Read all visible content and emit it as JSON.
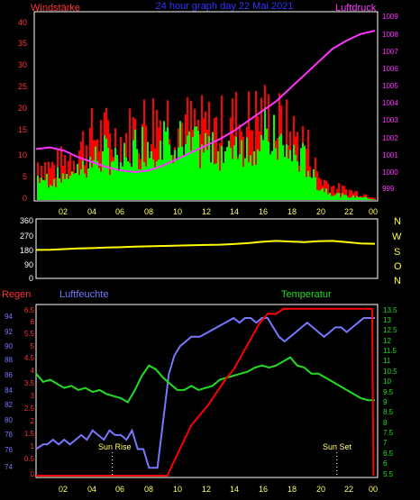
{
  "chart_data": [
    {
      "type": "bar",
      "title": "24 hour graph day 22 Mai 2021",
      "left_label": "Windstärke",
      "right_label": "Luftdruck",
      "x_ticks": [
        "02",
        "04",
        "06",
        "08",
        "10",
        "12",
        "14",
        "16",
        "18",
        "20",
        "22",
        "00"
      ],
      "y_left_ticks": [
        "40",
        "35",
        "30",
        "25",
        "20",
        "15",
        "10",
        "5",
        "0"
      ],
      "y_right_ticks": [
        "1009",
        "1008",
        "1007",
        "1006",
        "1005",
        "1004",
        "1003",
        "1002",
        "1001",
        "1000",
        "999"
      ],
      "ylim_left": [
        0,
        42.5
      ],
      "ylim_right": [
        998,
        1009.4
      ],
      "gust_color": "#ff0000",
      "wind_color": "#00ff00",
      "pressure_color": "#ff33ff",
      "wind_envelope": {
        "x": [
          0,
          1,
          2,
          3,
          4,
          5,
          6,
          7,
          8,
          9,
          10,
          11,
          12,
          13,
          14,
          15,
          16,
          17,
          18,
          19,
          20,
          21,
          22,
          23,
          24
        ],
        "gust": [
          12,
          10,
          12,
          16,
          20,
          20,
          18,
          22,
          24,
          26,
          24,
          22,
          22,
          22,
          24,
          24,
          26,
          24,
          20,
          18,
          7,
          4,
          3,
          2,
          1
        ],
        "wind": [
          7,
          6,
          8,
          10,
          12,
          14,
          12,
          16,
          18,
          20,
          18,
          16,
          16,
          16,
          18,
          18,
          20,
          18,
          14,
          12,
          4,
          2,
          1,
          1,
          0
        ]
      },
      "pressure": {
        "x": [
          0,
          1,
          2,
          3,
          4,
          5,
          6,
          7,
          8,
          9,
          10,
          11,
          12,
          13,
          14,
          15,
          16,
          17,
          18,
          19,
          20,
          21,
          22,
          23,
          24
        ],
        "y": [
          1001.1,
          1001.2,
          1001.0,
          1000.6,
          1000.3,
          1000.0,
          999.8,
          999.7,
          999.8,
          1000.1,
          1000.5,
          1000.9,
          1001.3,
          1001.7,
          1002.2,
          1002.8,
          1003.4,
          1004.0,
          1004.8,
          1005.6,
          1006.4,
          1007.2,
          1007.7,
          1008.1,
          1008.3
        ]
      }
    },
    {
      "type": "line",
      "y_ticks": [
        "360",
        "270",
        "180",
        "90",
        "0"
      ],
      "ylim": [
        0,
        360
      ],
      "compass": [
        "N",
        "W",
        "S",
        "O",
        "N"
      ],
      "color": "#ffff00",
      "x_ticks": [
        "02",
        "04",
        "06",
        "08",
        "10",
        "12",
        "14",
        "16",
        "18",
        "20",
        "22",
        "00"
      ],
      "x": [
        0,
        1,
        2,
        3,
        4,
        5,
        6,
        7,
        8,
        9,
        10,
        11,
        12,
        13,
        14,
        15,
        16,
        17,
        18,
        19,
        20,
        21,
        22,
        23,
        24
      ],
      "y": [
        175,
        176,
        180,
        184,
        186,
        190,
        192,
        196,
        198,
        200,
        202,
        204,
        206,
        208,
        212,
        218,
        226,
        232,
        228,
        224,
        230,
        232,
        224,
        216,
        214
      ]
    },
    {
      "type": "line",
      "labels": {
        "regen": "Regen",
        "luftfeuchte": "Luftfeuchte",
        "temperatur": "Temperatur"
      },
      "y_rain_ticks": [
        "6.5",
        "6",
        "5.5",
        "5",
        "4.5",
        "4",
        "3.5",
        "3",
        "2.5",
        "2",
        "1.5",
        "1",
        "0.5",
        "0"
      ],
      "ylim_rain": [
        0,
        6.7
      ],
      "y_hum_ticks": [
        "94",
        "92",
        "90",
        "88",
        "86",
        "84",
        "82",
        "80",
        "78",
        "76",
        "74"
      ],
      "ylim_hum": [
        73.2,
        94.9
      ],
      "y_temp_ticks": [
        "13.5",
        "13",
        "12.5",
        "12",
        "11.5",
        "11",
        "10.5",
        "10",
        "9.5",
        "9",
        "8.5",
        "8",
        "7.5",
        "7",
        "6.5",
        "6",
        "5.5"
      ],
      "ylim_temp": [
        5.4,
        13.7
      ],
      "x_ticks": [
        "02",
        "04",
        "06",
        "08",
        "10",
        "12",
        "14",
        "16",
        "18",
        "20",
        "22",
        "00"
      ],
      "sun_rise_label": "Sun Rise",
      "sun_set_label": "Sun Set",
      "sun_rise_x": 5.4,
      "sun_set_x": 21.3,
      "rain_color": "#ff0000",
      "hum_color": "#7777ff",
      "temp_color": "#22dd22",
      "rain": {
        "x": [
          0,
          9.3,
          9.8,
          10.4,
          11.0,
          11.6,
          12.2,
          12.8,
          13.4,
          14.0,
          14.6,
          15.2,
          15.8,
          16.4,
          17.0,
          17.5,
          18.2,
          23.8,
          23.9
        ],
        "y": [
          0,
          0,
          0.6,
          1.3,
          2.0,
          2.4,
          2.8,
          3.3,
          3.8,
          4.2,
          4.8,
          5.4,
          6.0,
          6.4,
          6.4,
          6.6,
          6.6,
          6.6,
          0
        ]
      },
      "humidity": {
        "x": [
          0,
          0.5,
          0.8,
          1.2,
          1.6,
          2.0,
          2.4,
          2.8,
          3.2,
          3.6,
          4.0,
          4.4,
          4.8,
          5.2,
          5.6,
          6.0,
          6.4,
          6.8,
          7.2,
          7.6,
          8.0,
          8.6,
          9.0,
          9.4,
          9.8,
          10.2,
          10.6,
          11.0,
          11.6,
          12.2,
          12.8,
          13.4,
          14.0,
          14.4,
          14.8,
          15.2,
          15.6,
          16.0,
          16.4,
          16.8,
          17.2,
          17.6,
          18.0,
          18.4,
          18.8,
          19.2,
          19.6,
          20.0,
          20.4,
          20.8,
          21.2,
          21.6,
          22.0,
          22.4,
          22.8,
          23.2,
          23.6,
          24
        ],
        "y": [
          76.6,
          77.2,
          77.2,
          77.8,
          77.2,
          77.8,
          77.2,
          77.8,
          78.4,
          77.8,
          79.0,
          78.4,
          77.8,
          79.0,
          78.4,
          78.4,
          77.8,
          79.0,
          76.6,
          76.6,
          74.2,
          74.2,
          80.2,
          86.2,
          88.6,
          89.8,
          90.4,
          91.0,
          91.0,
          91.6,
          92.2,
          92.8,
          93.4,
          92.8,
          93.4,
          93.4,
          92.8,
          93.4,
          93.4,
          92.2,
          91.0,
          90.4,
          91.0,
          91.6,
          92.2,
          92.8,
          92.2,
          91.6,
          91.0,
          91.6,
          92.2,
          92.2,
          91.6,
          92.2,
          92.8,
          93.4,
          93.4,
          93.4
        ]
      },
      "temperature": {
        "x": [
          0,
          0.5,
          1.0,
          1.5,
          2.0,
          2.5,
          3.0,
          3.5,
          4.0,
          4.5,
          5.0,
          5.5,
          6.0,
          6.5,
          7.0,
          7.5,
          8.0,
          8.5,
          9.0,
          9.5,
          10.0,
          10.5,
          11.0,
          11.5,
          12.0,
          12.5,
          13.0,
          13.5,
          14.0,
          14.5,
          15.0,
          15.5,
          16.0,
          16.5,
          17.0,
          17.5,
          18.0,
          18.5,
          19.0,
          19.5,
          20.0,
          20.5,
          21.0,
          21.5,
          22.0,
          22.5,
          23.0,
          23.5,
          24
        ],
        "y": [
          10.4,
          10.0,
          10.1,
          9.9,
          9.7,
          9.8,
          9.6,
          9.7,
          9.5,
          9.6,
          9.4,
          9.3,
          9.2,
          9.0,
          9.6,
          10.3,
          10.8,
          10.6,
          10.2,
          9.9,
          9.6,
          9.6,
          9.8,
          9.6,
          9.7,
          9.8,
          10.1,
          10.2,
          10.3,
          10.4,
          10.5,
          10.7,
          10.8,
          10.7,
          10.8,
          11.0,
          11.2,
          10.8,
          10.7,
          10.4,
          10.4,
          10.2,
          10.0,
          9.8,
          9.6,
          9.4,
          9.2,
          9.1,
          9.1
        ]
      }
    }
  ]
}
